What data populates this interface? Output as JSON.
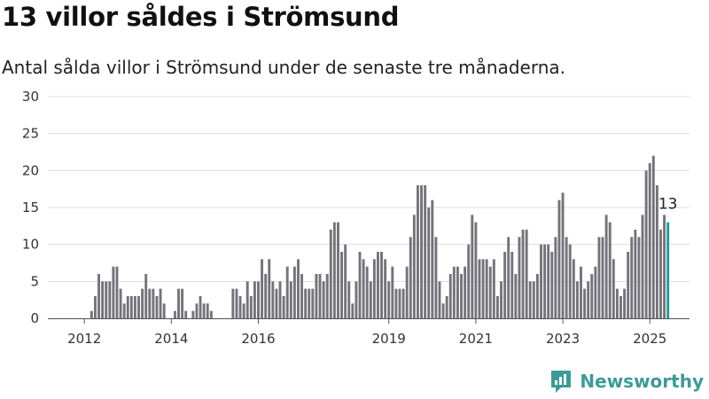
{
  "header": {
    "title": "13 villor såldes i Strömsund",
    "subtitle": "Antal sålda villor i Strömsund under de senaste tre månaderna."
  },
  "brand": {
    "name": "Newsworthy",
    "color": "#3d9a96"
  },
  "colors": {
    "bar": "#74737a",
    "highlight": "#1f9a96",
    "grid": "#dddddd"
  },
  "chart_data": {
    "type": "bar",
    "title": "13 villor såldes i Strömsund",
    "subtitle": "Antal sålda villor i Strömsund under de senaste tre månaderna.",
    "xlabel": "",
    "ylabel": "",
    "ylim": [
      0,
      30
    ],
    "yticks": [
      0,
      5,
      10,
      15,
      20,
      25,
      30
    ],
    "xticks": [
      "2012",
      "2014",
      "2016",
      "2019",
      "2021",
      "2023",
      "2025"
    ],
    "grid": true,
    "highlight_last": true,
    "last_label": "13",
    "values": [
      0,
      0,
      0,
      0,
      0,
      0,
      0,
      0,
      0,
      0,
      1,
      3,
      6,
      5,
      5,
      5,
      7,
      7,
      4,
      2,
      3,
      3,
      3,
      3,
      4,
      6,
      4,
      4,
      3,
      4,
      2,
      0,
      0,
      1,
      4,
      4,
      1,
      0,
      1,
      2,
      3,
      2,
      2,
      1,
      0,
      0,
      0,
      0,
      0,
      4,
      4,
      3,
      2,
      5,
      3,
      5,
      5,
      8,
      6,
      8,
      5,
      4,
      5,
      3,
      7,
      5,
      7,
      8,
      6,
      4,
      4,
      4,
      6,
      6,
      5,
      6,
      12,
      13,
      13,
      9,
      10,
      5,
      2,
      5,
      9,
      8,
      7,
      5,
      8,
      9,
      9,
      8,
      5,
      7,
      4,
      4,
      4,
      7,
      11,
      14,
      18,
      18,
      18,
      15,
      16,
      11,
      5,
      2,
      3,
      6,
      7,
      7,
      6,
      7,
      10,
      14,
      13,
      8,
      8,
      8,
      7,
      8,
      3,
      5,
      9,
      11,
      9,
      6,
      11,
      12,
      12,
      5,
      5,
      6,
      10,
      10,
      10,
      9,
      11,
      16,
      17,
      11,
      10,
      8,
      5,
      7,
      4,
      5,
      6,
      7,
      11,
      11,
      14,
      13,
      8,
      4,
      3,
      4,
      9,
      11,
      12,
      11,
      14,
      20,
      21,
      22,
      18,
      12,
      14,
      13
    ]
  }
}
